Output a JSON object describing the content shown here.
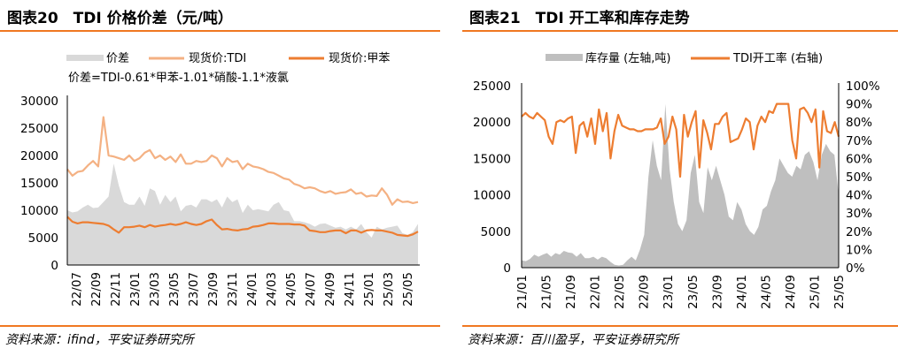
{
  "left_panel": {
    "title": "图表20　TDI 价格价差（元/吨）",
    "legend": {
      "spread": "价差",
      "tdi_price": "现货价:TDI",
      "toluene_price": "现货价:甲苯"
    },
    "formula": "价差=TDI-0.61*甲苯-1.01*硝酸-1.1*液氯",
    "source": "资料来源：ifind，平安证券研究所",
    "colors": {
      "spread": "#d9d9d9",
      "tdi_price": "#f4b183",
      "toluene_price": "#ed7d31",
      "rule": "#f07821"
    }
  },
  "right_panel": {
    "title": "图表21　TDI 开工率和库存走势",
    "legend": {
      "inventory": "库存量 (左轴,吨)",
      "operating_rate": "TDI开工率 (右轴)"
    },
    "source": "资料来源：百川盈孚，平安证券研究所",
    "colors": {
      "inventory": "#bfbfbf",
      "operating_rate": "#ed7d31"
    }
  },
  "chart_data": [
    {
      "type": "line",
      "y_ticks": [
        "0",
        "5000",
        "10000",
        "15000",
        "20000",
        "25000",
        "30000"
      ],
      "ylim": [
        0,
        30000
      ],
      "x_ticks": [
        "22/07",
        "22/09",
        "22/11",
        "23/01",
        "23/03",
        "23/05",
        "23/07",
        "23/09",
        "23/11",
        "24/01",
        "24/03",
        "24/05",
        "24/07",
        "24/09",
        "24/11",
        "25/01",
        "25/03",
        "25/05"
      ],
      "series": [
        {
          "name": "价差",
          "kind": "area",
          "values": [
            10000,
            9600,
            9800,
            10500,
            11000,
            10400,
            10500,
            11500,
            12500,
            18500,
            14500,
            11500,
            11000,
            11000,
            12500,
            10800,
            14000,
            13500,
            11000,
            12800,
            11500,
            12500,
            9800,
            10800,
            11000,
            10500,
            12000,
            12000,
            11500,
            12000,
            10500,
            12500,
            11500,
            12000,
            9500,
            11000,
            10000,
            10200,
            10000,
            9800,
            11000,
            11500,
            10000,
            9800,
            8000,
            8000,
            7800,
            7500,
            7000,
            7500,
            7600,
            7200,
            6800,
            7000,
            6500,
            7000,
            6500,
            7500,
            6000,
            5000,
            7000,
            6500,
            6800,
            7000,
            7200,
            5800,
            5500,
            6000,
            7500
          ]
        },
        {
          "name": "现货价:TDI",
          "kind": "line",
          "values": [
            17500,
            16300,
            17000,
            17200,
            18200,
            19000,
            18000,
            27000,
            20000,
            19800,
            19500,
            19200,
            20000,
            19000,
            19500,
            20500,
            21000,
            19500,
            20000,
            19200,
            19800,
            18800,
            20200,
            18500,
            18500,
            19000,
            18800,
            19000,
            20000,
            19500,
            18000,
            19500,
            18800,
            19000,
            17500,
            18500,
            18000,
            17800,
            17500,
            17000,
            16800,
            16300,
            15800,
            15600,
            14800,
            14500,
            14000,
            14200,
            14000,
            13500,
            13200,
            13500,
            13000,
            13200,
            13300,
            13800,
            13000,
            13200,
            12500,
            12700,
            12600,
            14000,
            12800,
            11000,
            12000,
            11500,
            11600,
            11300,
            11500
          ]
        },
        {
          "name": "现货价:甲苯",
          "kind": "line",
          "values": [
            8800,
            7900,
            7600,
            7800,
            7800,
            7700,
            7600,
            7500,
            7200,
            6500,
            5900,
            6900,
            6900,
            7000,
            7200,
            6900,
            7300,
            7000,
            7200,
            7300,
            7500,
            7300,
            7500,
            7800,
            7500,
            7300,
            7500,
            8000,
            8300,
            7300,
            6500,
            6600,
            6400,
            6300,
            6500,
            6600,
            7000,
            7100,
            7300,
            7600,
            7600,
            7500,
            7500,
            7500,
            7400,
            7400,
            7200,
            6300,
            6200,
            6000,
            6000,
            6200,
            6300,
            6300,
            5800,
            6300,
            6300,
            5900,
            6300,
            6400,
            6300,
            6300,
            6100,
            5900,
            5500,
            5400,
            5300,
            5600,
            6100
          ]
        }
      ]
    },
    {
      "type": "line",
      "y_left_ticks": [
        "0",
        "5000",
        "10000",
        "15000",
        "20000",
        "25000"
      ],
      "ylim_left": [
        0,
        25000
      ],
      "y_right_ticks": [
        "0%",
        "10%",
        "20%",
        "30%",
        "40%",
        "50%",
        "60%",
        "70%",
        "80%",
        "90%",
        "100%"
      ],
      "ylim_right": [
        0,
        100
      ],
      "x_ticks": [
        "21/01",
        "21/05",
        "21/09",
        "22/01",
        "22/05",
        "22/09",
        "23/01",
        "23/05",
        "23/09",
        "24/01",
        "24/05",
        "24/09",
        "25/01",
        "25/05"
      ],
      "series": [
        {
          "name": "库存量",
          "kind": "area",
          "axis": "left",
          "values": [
            1000,
            900,
            1200,
            1800,
            1500,
            1800,
            2000,
            1500,
            2000,
            1800,
            2300,
            2100,
            2000,
            1500,
            2000,
            1300,
            1300,
            1500,
            1100,
            1500,
            1300,
            800,
            400,
            300,
            400,
            1000,
            1500,
            1000,
            2500,
            4500,
            12500,
            17500,
            14000,
            12000,
            22500,
            13500,
            9000,
            6000,
            5000,
            6500,
            13000,
            15500,
            9000,
            7500,
            13800,
            12000,
            14000,
            12000,
            10000,
            7000,
            6500,
            9000,
            8000,
            6000,
            5000,
            4500,
            5600,
            8000,
            8500,
            10500,
            12000,
            15000,
            14000,
            13000,
            12500,
            14000,
            13500,
            15500,
            16000,
            14500,
            12000,
            15500,
            17000,
            16000,
            15500,
            10000
          ]
        },
        {
          "name": "TDI开工率",
          "kind": "line",
          "axis": "right",
          "values": [
            83,
            85,
            83,
            82,
            85,
            83,
            81,
            72,
            68,
            80,
            81,
            80,
            82,
            83,
            63,
            78,
            80,
            72,
            82,
            68,
            87,
            75,
            85,
            60,
            75,
            84,
            78,
            77,
            76,
            76,
            75,
            75,
            76,
            76,
            76,
            77,
            82,
            68,
            72,
            83,
            76,
            50,
            84,
            72,
            80,
            86,
            55,
            81,
            74,
            65,
            79,
            79,
            83,
            85,
            69,
            70,
            71,
            76,
            82,
            80,
            65,
            78,
            83,
            80,
            86,
            85,
            90,
            90,
            90,
            90,
            70,
            60,
            87,
            88,
            85,
            80,
            87,
            55,
            86,
            75,
            74,
            80,
            72
          ]
        }
      ]
    }
  ]
}
